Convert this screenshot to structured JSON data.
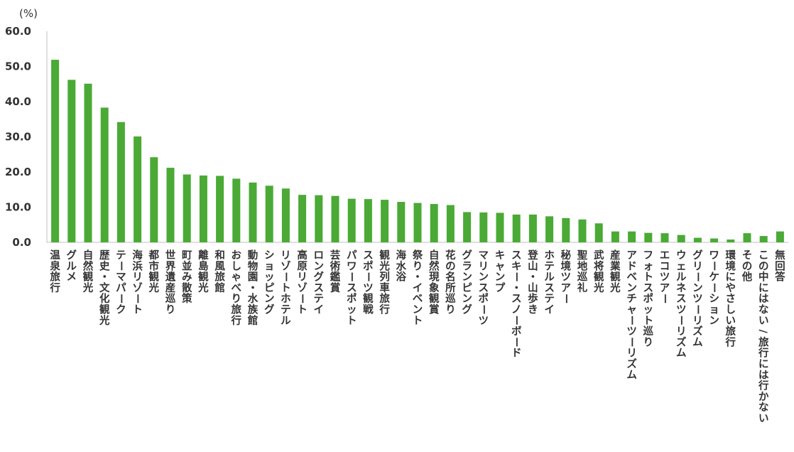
{
  "chart_data": {
    "type": "bar",
    "yunit": "(%)",
    "ylim": [
      0,
      60
    ],
    "yticks": [
      "0.0",
      "10.0",
      "20.0",
      "30.0",
      "40.0",
      "50.0",
      "60.0"
    ],
    "grid": false,
    "bar_color": "#4aaa35",
    "categories": [
      "温泉旅行",
      "グルメ",
      "自然観光",
      "歴史・文化観光",
      "テーマパーク",
      "海浜リゾート",
      "都市観光",
      "世界遺産巡り",
      "町並み散策",
      "離島観光",
      "和風旅館",
      "おしゃべり旅行",
      "動物園・水族館",
      "ショッピング",
      "リゾートホテル",
      "高原リゾート",
      "ロングステイ",
      "芸術鑑賞",
      "パワースポット",
      "スポーツ観戦",
      "観光列車旅行",
      "海水浴",
      "祭り・イベント",
      "自然現象観賞",
      "花の名所巡り",
      "グランピング",
      "マリンスポーツ",
      "キャンプ",
      "スキー・スノーボード",
      "登山・山歩き",
      "ホテルステイ",
      "秘境ツアー",
      "聖地巡礼",
      "武将観光",
      "産業観光",
      "アドベンチャーツーリズム",
      "フォトスポット巡り",
      "エコツアー",
      "ウェルネスツーリズム",
      "グリーンツーリズム",
      "ワーケーション",
      "環境にやさしい旅行",
      "その他",
      "この中にはない/旅行には行かない",
      "無回答"
    ],
    "values": [
      51.9,
      46.2,
      45.1,
      38.3,
      34.2,
      30.1,
      24.2,
      21.2,
      19.3,
      19.0,
      18.9,
      18.1,
      17.0,
      16.1,
      15.3,
      13.5,
      13.4,
      13.2,
      12.4,
      12.3,
      12.1,
      11.5,
      11.2,
      10.9,
      10.6,
      8.6,
      8.5,
      8.4,
      7.9,
      7.9,
      7.4,
      6.9,
      6.5,
      5.4,
      3.1,
      3.1,
      2.7,
      2.6,
      2.1,
      1.3,
      1.1,
      0.8,
      2.6,
      1.8,
      3.1
    ]
  }
}
